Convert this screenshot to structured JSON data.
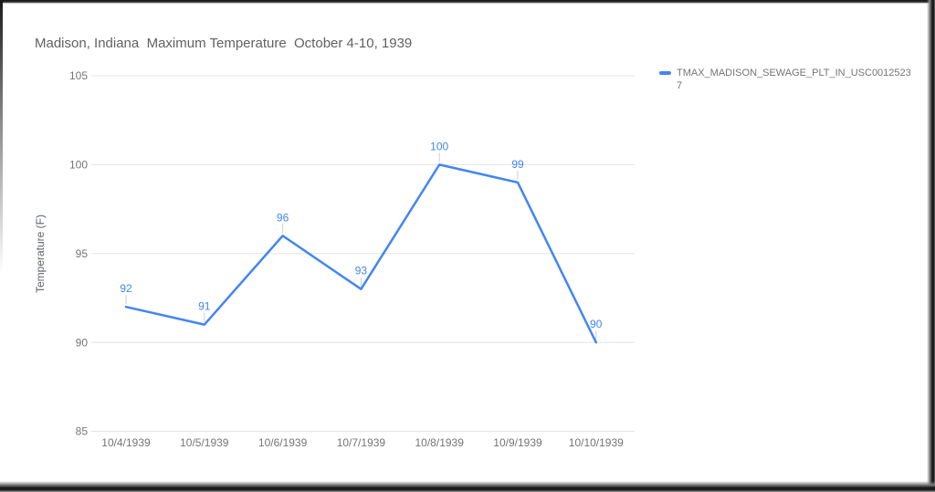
{
  "chart_data": {
    "type": "line",
    "title": "Madison, Indiana  Maximum Temperature  October 4-10, 1939",
    "categories": [
      "10/4/1939",
      "10/5/1939",
      "10/6/1939",
      "10/7/1939",
      "10/8/1939",
      "10/9/1939",
      "10/10/1939"
    ],
    "series": [
      {
        "name": "TMAX_MADISON_SEWAGE_PLT_IN_USC00125237",
        "values": [
          92,
          91,
          96,
          93,
          100,
          99,
          90
        ],
        "color": "#4285f4"
      }
    ],
    "xlabel": "",
    "ylabel": "Temperature (F)",
    "ylim": [
      85,
      105
    ],
    "yticks": [
      85,
      90,
      95,
      100,
      105
    ],
    "grid": true,
    "data_labels": true,
    "legend_position": "right",
    "colors": {
      "series": "#4285f4",
      "annotation": "#4285f4",
      "annotation_stem": "#cccccc",
      "gridline": "#e3e3e3",
      "axis_text": "#757575",
      "axis_title_text": "#5f6368",
      "title_text": "#616161",
      "legend_text": "#757575",
      "background": "#ffffff"
    }
  }
}
